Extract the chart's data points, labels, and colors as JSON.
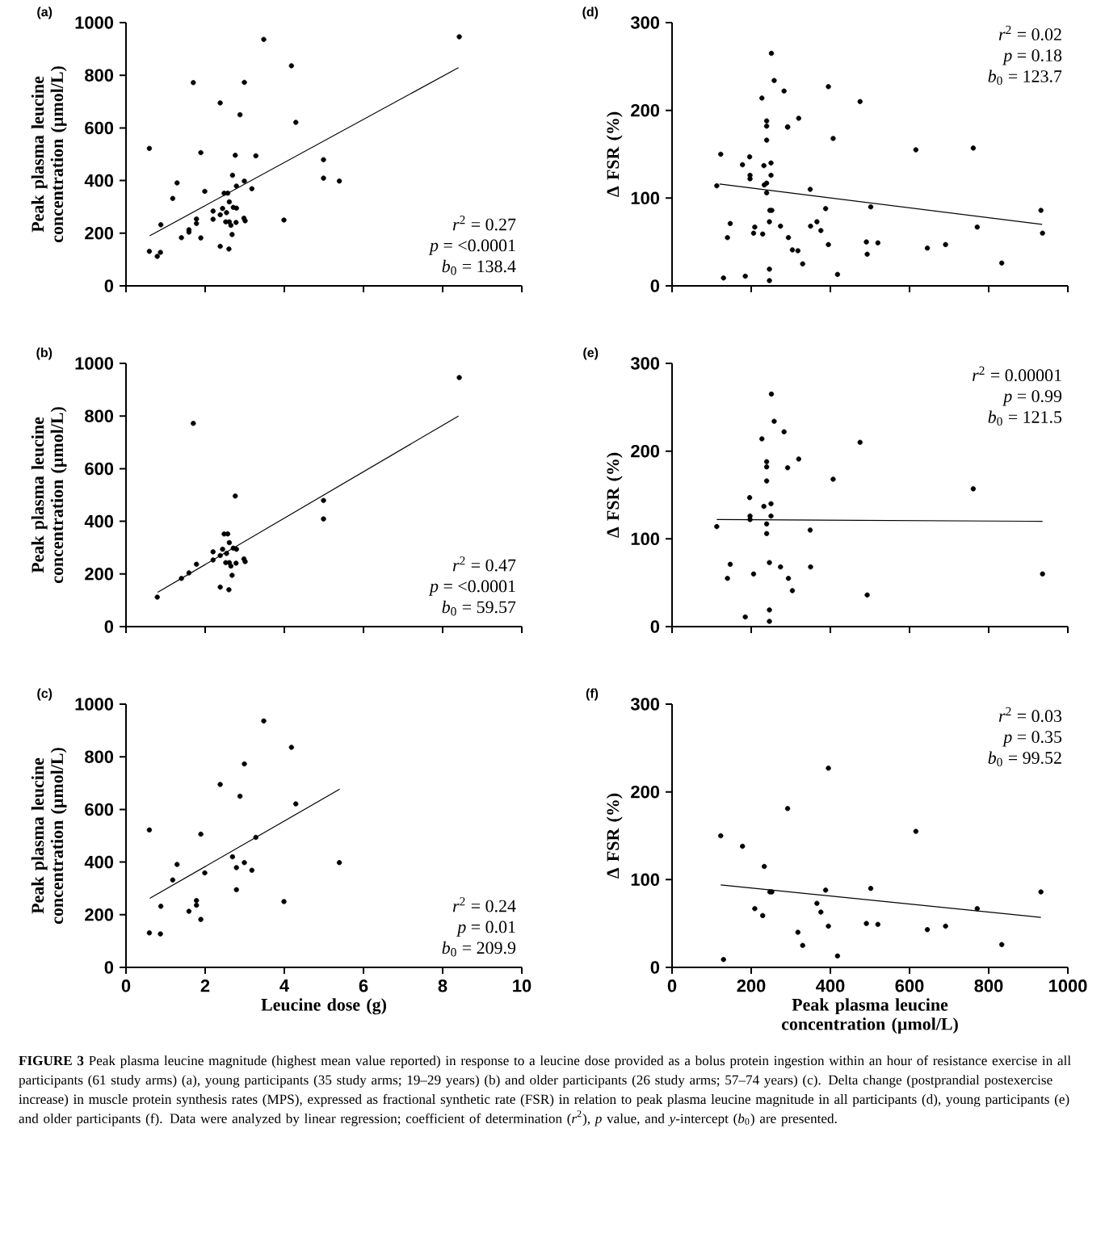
{
  "chart_data": [
    {
      "type": "scatter",
      "title": "(a)",
      "ylabel": "Peak plasma leucine concentration (µmol/L)",
      "xlim": [
        0,
        10
      ],
      "ylim": [
        0,
        1000
      ],
      "xticks": [
        0,
        2,
        4,
        6,
        8,
        10
      ],
      "yticks": [
        0,
        200,
        400,
        600,
        800,
        1000
      ],
      "tick_labels": "y",
      "series": [
        {
          "color": "#000000",
          "marker": "circle",
          "x": [
            0.79,
            1.4,
            1.59,
            1.78,
            1.7,
            2.2,
            2.2,
            2.38,
            2.38,
            2.44,
            2.48,
            2.52,
            2.54,
            2.57,
            2.6,
            2.61,
            2.61,
            2.65,
            2.68,
            2.71,
            2.76,
            2.78,
            2.98,
            3.01,
            4.99,
            4.99,
            8.42,
            0.59,
            0.59,
            0.87,
            0.88,
            1.18,
            1.29,
            1.59,
            1.78,
            1.89,
            1.89,
            1.99,
            2.38,
            2.69,
            2.79,
            2.79,
            2.88,
            2.99,
            2.99,
            3.18,
            3.28,
            3.48,
            3.99,
            4.18,
            4.29,
            5.39
          ],
          "values": [
            112,
            183,
            204,
            237,
            772,
            284,
            253,
            270,
            150,
            294,
            352,
            243,
            278,
            352,
            140,
            319,
            243,
            230,
            195,
            298,
            496,
            241,
            257,
            247,
            479,
            409,
            946,
            522,
            131,
            127,
            232,
            332,
            391,
            213,
            254,
            506,
            182,
            359,
            695,
            420,
            379,
            295,
            650,
            773,
            398,
            369,
            494,
            936,
            250,
            836,
            621,
            398
          ]
        },
        {
          "type": "line",
          "color": "#000000",
          "x": [
            0.6,
            8.4
          ],
          "values": [
            190,
            829
          ]
        }
      ],
      "annotations": [
        "*r*$^{2}$ = 0.27",
        "*p* = <0.0001",
        "*b*$_{0}$ = 138.4"
      ]
    },
    {
      "type": "scatter",
      "title": "(d)",
      "ylabel": "Δ FSR (%)",
      "xlim": [
        0,
        1000
      ],
      "ylim": [
        0,
        300
      ],
      "xticks": [
        0,
        200,
        400,
        600,
        800,
        1000
      ],
      "yticks": [
        0,
        100,
        200,
        300
      ],
      "tick_labels": "y",
      "series": [
        {
          "color": "#000000",
          "marker": "circle",
          "x": [
            113,
            140,
            147,
            185,
            196,
            197,
            197,
            206,
            227,
            232,
            239,
            239,
            239,
            239,
            239,
            246,
            246,
            246,
            250,
            250,
            251,
            258,
            274,
            283,
            292,
            294,
            304,
            320,
            349,
            350,
            407,
            475,
            493,
            761,
            936,
            123,
            130,
            178,
            209,
            229,
            233,
            247,
            252,
            292,
            330,
            318,
            366,
            376,
            388,
            395,
            395,
            418,
            491,
            502,
            520,
            616,
            645,
            691,
            771,
            833,
            932
          ],
          "values": [
            114,
            55,
            71,
            11,
            147,
            126,
            122,
            60,
            214,
            137,
            188,
            182,
            166,
            117,
            106,
            19,
            6,
            73,
            140,
            126,
            265,
            234,
            68,
            222,
            181,
            55,
            41,
            191,
            110,
            68,
            168,
            210,
            36,
            157,
            60,
            150,
            9,
            138,
            67,
            59,
            115,
            86,
            86,
            181,
            25,
            40,
            73,
            63,
            88,
            227,
            47,
            13,
            50,
            90,
            49,
            155,
            43,
            47,
            67,
            26,
            86
          ]
        },
        {
          "type": "line",
          "color": "#000000",
          "x": [
            120,
            935
          ],
          "values": [
            116,
            70
          ]
        }
      ],
      "annotations": [
        "*r*$^{2}$ = 0.02",
        "*p* = 0.18",
        "*b*$_{0}$ = 123.7"
      ]
    },
    {
      "type": "scatter",
      "title": "(b)",
      "ylabel": "Peak plasma leucine concentration (µmol/L)",
      "xlim": [
        0,
        10
      ],
      "ylim": [
        0,
        1000
      ],
      "xticks": [
        0,
        2,
        4,
        6,
        8,
        10
      ],
      "yticks": [
        0,
        200,
        400,
        600,
        800,
        1000
      ],
      "tick_labels": "y",
      "series": [
        {
          "color": "#000000",
          "marker": "circle",
          "x": [
            0.79,
            1.4,
            1.59,
            1.78,
            1.7,
            2.2,
            2.2,
            2.38,
            2.38,
            2.44,
            2.48,
            2.52,
            2.54,
            2.57,
            2.6,
            2.61,
            2.61,
            2.65,
            2.68,
            2.71,
            2.76,
            2.78,
            2.79,
            2.98,
            3.01,
            4.99,
            4.99,
            8.42
          ],
          "values": [
            112,
            183,
            204,
            237,
            772,
            284,
            253,
            270,
            150,
            294,
            352,
            243,
            278,
            352,
            140,
            319,
            243,
            230,
            195,
            298,
            496,
            241,
            294,
            257,
            247,
            479,
            409,
            946
          ]
        },
        {
          "type": "line",
          "color": "#000000",
          "x": [
            0.8,
            8.4
          ],
          "values": [
            130,
            800
          ]
        }
      ],
      "annotations": [
        "*r*$^{2}$ = 0.47",
        "*p* = <0.0001",
        "*b*$_{0}$ = 59.57"
      ]
    },
    {
      "type": "scatter",
      "title": "(e)",
      "ylabel": "Δ FSR (%)",
      "xlim": [
        0,
        1000
      ],
      "ylim": [
        0,
        300
      ],
      "xticks": [
        0,
        200,
        400,
        600,
        800,
        1000
      ],
      "yticks": [
        0,
        100,
        200,
        300
      ],
      "tick_labels": "y",
      "series": [
        {
          "color": "#000000",
          "marker": "circle",
          "x": [
            113,
            140,
            147,
            185,
            196,
            197,
            197,
            206,
            227,
            232,
            239,
            239,
            239,
            239,
            239,
            246,
            246,
            246,
            250,
            250,
            251,
            258,
            274,
            283,
            292,
            294,
            304,
            320,
            349,
            350,
            407,
            475,
            493,
            761,
            936
          ],
          "values": [
            114,
            55,
            71,
            11,
            147,
            126,
            122,
            60,
            214,
            137,
            188,
            182,
            166,
            117,
            106,
            19,
            6,
            73,
            140,
            126,
            265,
            234,
            68,
            222,
            181,
            55,
            41,
            191,
            110,
            68,
            168,
            210,
            36,
            157,
            60
          ]
        },
        {
          "type": "line",
          "color": "#000000",
          "x": [
            113,
            936
          ],
          "values": [
            122,
            120
          ]
        }
      ],
      "annotations": [
        "*r*$^{2}$ = 0.00001",
        "*p* = 0.99",
        "*b*$_{0}$ = 121.5"
      ]
    },
    {
      "type": "scatter",
      "title": "(c)",
      "xlabel": "Leucine dose (g)",
      "ylabel": "Peak plasma leucine concentration (µmol/L)",
      "xlim": [
        0,
        10
      ],
      "ylim": [
        0,
        1000
      ],
      "xticks": [
        0,
        2,
        4,
        6,
        8,
        10
      ],
      "yticks": [
        0,
        200,
        400,
        600,
        800,
        1000
      ],
      "series": [
        {
          "color": "#000000",
          "marker": "circle",
          "x": [
            0.59,
            0.59,
            0.87,
            0.88,
            1.18,
            1.29,
            1.59,
            1.78,
            1.78,
            1.89,
            1.89,
            1.99,
            2.38,
            2.69,
            2.79,
            2.79,
            2.88,
            2.99,
            2.99,
            3.18,
            3.28,
            3.48,
            3.99,
            4.18,
            4.29,
            5.39
          ],
          "values": [
            522,
            131,
            127,
            232,
            332,
            391,
            213,
            254,
            236,
            506,
            182,
            359,
            695,
            420,
            379,
            295,
            650,
            773,
            398,
            369,
            494,
            936,
            250,
            836,
            621,
            398
          ]
        },
        {
          "type": "line",
          "color": "#000000",
          "x": [
            0.6,
            5.4
          ],
          "values": [
            262,
            677
          ]
        }
      ],
      "annotations": [
        "*r*$^{2}$ = 0.24",
        "*p* = 0.01",
        "*b*$_{0}$ = 209.9"
      ]
    },
    {
      "type": "scatter",
      "title": "(f)",
      "xlabel": "Peak plasma leucine concentration (µmol/L)",
      "ylabel": "Δ FSR (%)",
      "xlim": [
        0,
        1000
      ],
      "ylim": [
        0,
        300
      ],
      "xticks": [
        0,
        200,
        400,
        600,
        800,
        1000
      ],
      "yticks": [
        0,
        100,
        200,
        300
      ],
      "series": [
        {
          "color": "#000000",
          "marker": "circle",
          "x": [
            123,
            130,
            178,
            209,
            229,
            233,
            247,
            252,
            292,
            330,
            318,
            366,
            376,
            388,
            395,
            395,
            418,
            491,
            502,
            520,
            616,
            645,
            691,
            771,
            833,
            932
          ],
          "values": [
            150,
            9,
            138,
            67,
            59,
            115,
            86,
            86,
            181,
            25,
            40,
            73,
            63,
            88,
            227,
            47,
            13,
            50,
            90,
            49,
            155,
            43,
            47,
            67,
            26,
            86
          ]
        },
        {
          "type": "line",
          "color": "#000000",
          "x": [
            123,
            932
          ],
          "values": [
            94,
            57
          ]
        }
      ],
      "annotations": [
        "*r*$^{2}$ = 0.03",
        "*p* = 0.35",
        "*b*$_{0}$ = 99.52",
        "**FIGURE 3** Peak plasma leucine magnitude (highest mean value reported) in response to a leucine dose provided as a bolus protein ingestion within an hour of resistance exercise in all participants (61 study arms) (a), young participants (35 study arms; 19–29 years) (b) and older participants (26 study arms; 57–74 years) (c). Delta change (postprandial postexercise increase) in muscle protein synthesis rates (MPS), expressed as fractional synthetic rate (FSR) in relation to peak plasma leucine magnitude in all participants (d), young participants (e) and older participants (f). Data were analyzed by linear regression; coefficient of determination (*r*$^{2}$), *p* value, and *y*-intercept (*b*$_{0}$) are presented."
      ]
    }
  ]
}
